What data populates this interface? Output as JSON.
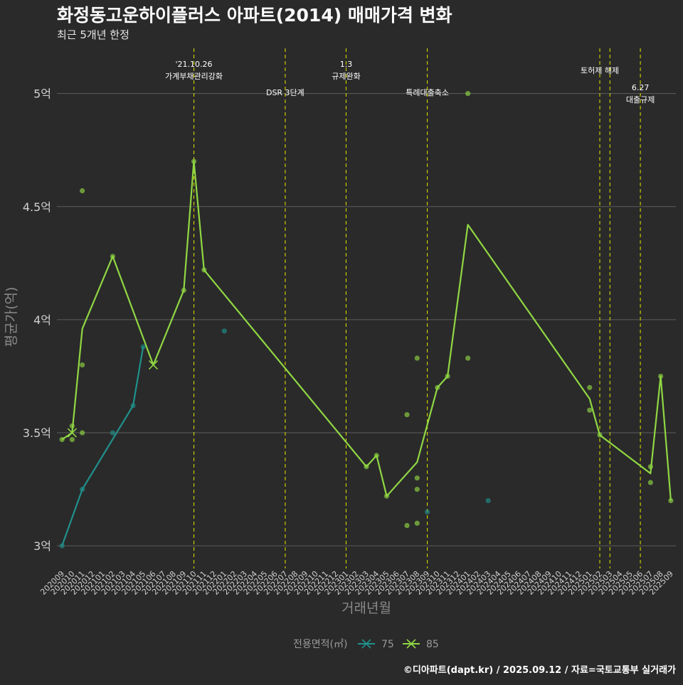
{
  "chart_data": {
    "type": "line",
    "title": "화정동고운하이플러스 아파트(2014) 매매가격 변화",
    "subtitle": "최근 5개년 한정",
    "xlabel": "거래년월",
    "ylabel": "평균가(억)",
    "ylim": [
      2.9,
      5.2
    ],
    "yticks": [
      {
        "value": 3.0,
        "label": "3억"
      },
      {
        "value": 3.5,
        "label": "3.5억"
      },
      {
        "value": 4.0,
        "label": "4억"
      },
      {
        "value": 4.5,
        "label": "4.5억"
      },
      {
        "value": 5.0,
        "label": "5억"
      }
    ],
    "categories": [
      "202009",
      "202010",
      "202011",
      "202012",
      "202101",
      "202102",
      "202103",
      "202104",
      "202105",
      "202106",
      "202107",
      "202108",
      "202109",
      "202110",
      "202111",
      "202112",
      "202201",
      "202202",
      "202203",
      "202204",
      "202205",
      "202206",
      "202207",
      "202208",
      "202209",
      "202210",
      "202211",
      "202212",
      "202301",
      "202302",
      "202303",
      "202304",
      "202305",
      "202306",
      "202307",
      "202308",
      "202309",
      "202310",
      "202311",
      "202312",
      "202401",
      "202402",
      "202403",
      "202404",
      "202405",
      "202406",
      "202407",
      "202408",
      "202409",
      "202410",
      "202411",
      "202412",
      "202501",
      "202502",
      "202503",
      "202504",
      "202505",
      "202506",
      "202507",
      "202508",
      "202509"
    ],
    "series": [
      {
        "name": "75",
        "color": "#21908c",
        "line": [
          {
            "x": "202009",
            "y": 3.0
          },
          {
            "x": "202011",
            "y": 3.25
          },
          {
            "x": "202104",
            "y": 3.62
          },
          {
            "x": "202105",
            "y": 3.88
          }
        ],
        "points": [
          {
            "x": "202009",
            "y": 3.0
          },
          {
            "x": "202011",
            "y": 3.25
          },
          {
            "x": "202102",
            "y": 3.5
          },
          {
            "x": "202104",
            "y": 3.62
          },
          {
            "x": "202105",
            "y": 3.88
          },
          {
            "x": "202201",
            "y": 3.95
          },
          {
            "x": "202309",
            "y": 3.15
          },
          {
            "x": "202403",
            "y": 3.2
          }
        ]
      },
      {
        "name": "85",
        "color": "#90d743",
        "line": [
          {
            "x": "202009",
            "y": 3.47
          },
          {
            "x": "202010",
            "y": 3.5
          },
          {
            "x": "202011",
            "y": 3.96
          },
          {
            "x": "202102",
            "y": 4.28
          },
          {
            "x": "202106",
            "y": 3.8
          },
          {
            "x": "202109",
            "y": 4.13
          },
          {
            "x": "202110",
            "y": 4.7
          },
          {
            "x": "202111",
            "y": 4.22
          },
          {
            "x": "202303",
            "y": 3.35
          },
          {
            "x": "202304",
            "y": 3.4
          },
          {
            "x": "202305",
            "y": 3.22
          },
          {
            "x": "202308",
            "y": 3.37
          },
          {
            "x": "202310",
            "y": 3.7
          },
          {
            "x": "202311",
            "y": 3.75
          },
          {
            "x": "202401",
            "y": 4.42
          },
          {
            "x": "202501",
            "y": 3.65
          },
          {
            "x": "202502",
            "y": 3.49
          },
          {
            "x": "202507",
            "y": 3.32
          },
          {
            "x": "202508",
            "y": 3.75
          },
          {
            "x": "202509",
            "y": 3.2
          }
        ],
        "points": [
          {
            "x": "202009",
            "y": 3.47
          },
          {
            "x": "202010",
            "y": 3.47
          },
          {
            "x": "202010",
            "y": 3.53
          },
          {
            "x": "202011",
            "y": 4.57
          },
          {
            "x": "202011",
            "y": 3.8
          },
          {
            "x": "202011",
            "y": 3.5
          },
          {
            "x": "202102",
            "y": 4.28
          },
          {
            "x": "202109",
            "y": 4.13
          },
          {
            "x": "202110",
            "y": 4.7
          },
          {
            "x": "202111",
            "y": 4.22
          },
          {
            "x": "202303",
            "y": 3.35
          },
          {
            "x": "202304",
            "y": 3.4
          },
          {
            "x": "202305",
            "y": 3.22
          },
          {
            "x": "202307",
            "y": 3.58
          },
          {
            "x": "202307",
            "y": 3.09
          },
          {
            "x": "202308",
            "y": 3.83
          },
          {
            "x": "202308",
            "y": 3.3
          },
          {
            "x": "202308",
            "y": 3.25
          },
          {
            "x": "202308",
            "y": 3.1
          },
          {
            "x": "202310",
            "y": 3.7
          },
          {
            "x": "202311",
            "y": 3.75
          },
          {
            "x": "202401",
            "y": 5.0
          },
          {
            "x": "202401",
            "y": 3.83
          },
          {
            "x": "202501",
            "y": 3.7
          },
          {
            "x": "202501",
            "y": 3.6
          },
          {
            "x": "202502",
            "y": 3.49
          },
          {
            "x": "202507",
            "y": 3.35
          },
          {
            "x": "202507",
            "y": 3.28
          },
          {
            "x": "202508",
            "y": 3.75
          },
          {
            "x": "202509",
            "y": 3.2
          }
        ]
      }
    ],
    "markers": [
      {
        "x": "202010",
        "y": 3.5,
        "series": "85"
      },
      {
        "x": "202106",
        "y": 3.8,
        "series": "85"
      }
    ],
    "events": [
      {
        "x": "202110",
        "line1": "'21.10.26",
        "line2": "가계부채관리강화",
        "level": "top"
      },
      {
        "x": "202207",
        "line1": "DSR 3단계",
        "line2": "",
        "level": "mid"
      },
      {
        "x": "202301",
        "line1": "1.3",
        "line2": "규제완화",
        "level": "top"
      },
      {
        "x": "202309",
        "line1": "특례대출축소",
        "line2": "",
        "level": "mid"
      },
      {
        "x": "202502",
        "line1": "토허제 해제",
        "line2": "",
        "level": "upper"
      },
      {
        "x": "202503",
        "line1": "",
        "line2": "",
        "level": "none"
      },
      {
        "x": "202506",
        "line1": "6.27",
        "line2": "대출규제",
        "level": "low"
      }
    ],
    "legend": {
      "title": "전용면적(㎡)",
      "position": "bottom"
    }
  },
  "footer": {
    "credit": "©디아파트(dapt.kr) / 2025.09.12 / 자료=국토교통부 실거래가"
  },
  "colors": {
    "background": "#2a2a2a",
    "grid": "#5c5c5c",
    "event_line": "#d4d400",
    "axis_text": "#cfcfcf",
    "axis_title": "#8a8a8a"
  }
}
